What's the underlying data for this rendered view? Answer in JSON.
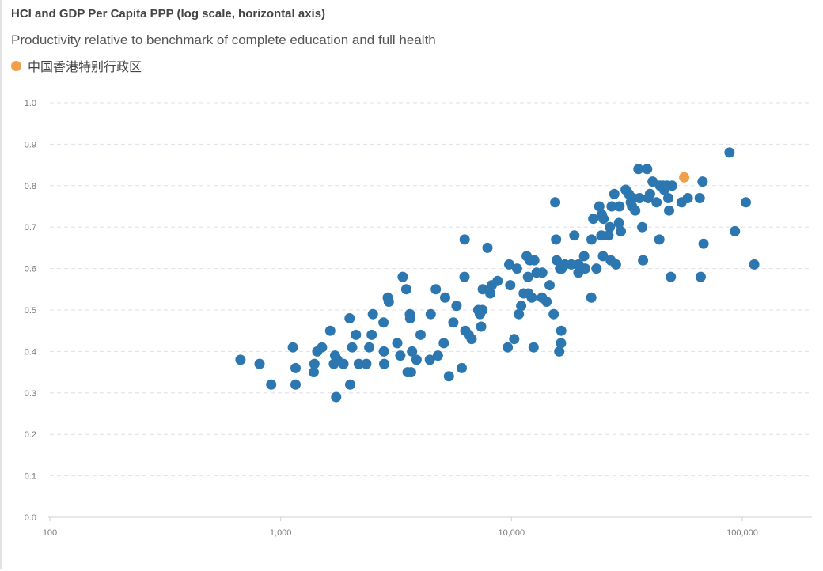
{
  "chart_data": {
    "type": "scatter",
    "title": "HCI and GDP Per Capita PPP (log scale, horizontal axis)",
    "subtitle": "Productivity relative to benchmark of complete education and full health",
    "xlabel": "",
    "ylabel": "",
    "x_scale": "log",
    "xlim": [
      100,
      200000
    ],
    "ylim": [
      0,
      1.0
    ],
    "grid": true,
    "legend_position": "top-left",
    "colors": {
      "series": "#2c77b0",
      "highlight": "#f0a04b",
      "grid": "#e4deea",
      "axis": "#d0d0d0"
    },
    "xticks": [
      {
        "value": 100,
        "label": "100"
      },
      {
        "value": 1000,
        "label": "1,000"
      },
      {
        "value": 10000,
        "label": "10,000"
      },
      {
        "value": 100000,
        "label": "100,000"
      }
    ],
    "yticks": [
      {
        "value": 0.0,
        "label": "0.0"
      },
      {
        "value": 0.1,
        "label": "0.1"
      },
      {
        "value": 0.2,
        "label": "0.2"
      },
      {
        "value": 0.3,
        "label": "0.3"
      },
      {
        "value": 0.4,
        "label": "0.4"
      },
      {
        "value": 0.5,
        "label": "0.5"
      },
      {
        "value": 0.6,
        "label": "0.6"
      },
      {
        "value": 0.7,
        "label": "0.7"
      },
      {
        "value": 0.8,
        "label": "0.8"
      },
      {
        "value": 0.9,
        "label": "0.9"
      },
      {
        "value": 1.0,
        "label": "1.0"
      }
    ],
    "highlight": {
      "name": "中国香港特别行政区",
      "x": 56000,
      "y": 0.82
    },
    "series": [
      {
        "points": [
          [
            670,
            0.38
          ],
          [
            810,
            0.37
          ],
          [
            910,
            0.32
          ],
          [
            1130,
            0.41
          ],
          [
            1160,
            0.36
          ],
          [
            1160,
            0.32
          ],
          [
            1390,
            0.35
          ],
          [
            1400,
            0.37
          ],
          [
            1440,
            0.4
          ],
          [
            1510,
            0.41
          ],
          [
            1640,
            0.45
          ],
          [
            1700,
            0.37
          ],
          [
            1720,
            0.39
          ],
          [
            1740,
            0.29
          ],
          [
            1760,
            0.38
          ],
          [
            1870,
            0.37
          ],
          [
            1990,
            0.48
          ],
          [
            2000,
            0.32
          ],
          [
            2040,
            0.41
          ],
          [
            2120,
            0.44
          ],
          [
            2180,
            0.37
          ],
          [
            2350,
            0.37
          ],
          [
            2420,
            0.41
          ],
          [
            2480,
            0.44
          ],
          [
            2510,
            0.49
          ],
          [
            2790,
            0.47
          ],
          [
            2810,
            0.37
          ],
          [
            2800,
            0.4
          ],
          [
            2910,
            0.53
          ],
          [
            2940,
            0.52
          ],
          [
            3200,
            0.42
          ],
          [
            3300,
            0.39
          ],
          [
            3380,
            0.58
          ],
          [
            3500,
            0.55
          ],
          [
            3550,
            0.35
          ],
          [
            3630,
            0.49
          ],
          [
            3640,
            0.48
          ],
          [
            3670,
            0.35
          ],
          [
            3710,
            0.4
          ],
          [
            3880,
            0.38
          ],
          [
            4040,
            0.44
          ],
          [
            4430,
            0.38
          ],
          [
            4470,
            0.49
          ],
          [
            4700,
            0.55
          ],
          [
            4800,
            0.39
          ],
          [
            5090,
            0.42
          ],
          [
            5160,
            0.53
          ],
          [
            5360,
            0.34
          ],
          [
            5600,
            0.47
          ],
          [
            5780,
            0.51
          ],
          [
            6090,
            0.36
          ],
          [
            6260,
            0.58
          ],
          [
            6270,
            0.67
          ],
          [
            6310,
            0.45
          ],
          [
            6530,
            0.44
          ],
          [
            6720,
            0.43
          ],
          [
            7180,
            0.5
          ],
          [
            7300,
            0.49
          ],
          [
            7390,
            0.46
          ],
          [
            7480,
            0.5
          ],
          [
            7510,
            0.55
          ],
          [
            7870,
            0.65
          ],
          [
            8100,
            0.54
          ],
          [
            8220,
            0.56
          ],
          [
            8710,
            0.57
          ],
          [
            9630,
            0.41
          ],
          [
            9780,
            0.61
          ],
          [
            9880,
            0.56
          ],
          [
            10280,
            0.43
          ],
          [
            10570,
            0.6
          ],
          [
            10770,
            0.49
          ],
          [
            11020,
            0.51
          ],
          [
            11300,
            0.54
          ],
          [
            11640,
            0.63
          ],
          [
            11790,
            0.58
          ],
          [
            11830,
            0.54
          ],
          [
            12000,
            0.62
          ],
          [
            12240,
            0.53
          ],
          [
            12470,
            0.41
          ],
          [
            12560,
            0.62
          ],
          [
            12850,
            0.59
          ],
          [
            13560,
            0.53
          ],
          [
            13600,
            0.59
          ],
          [
            14190,
            0.52
          ],
          [
            14630,
            0.56
          ],
          [
            15240,
            0.49
          ],
          [
            15470,
            0.76
          ],
          [
            15600,
            0.67
          ],
          [
            15700,
            0.62
          ],
          [
            16110,
            0.4
          ],
          [
            16230,
            0.6
          ],
          [
            16390,
            0.42
          ],
          [
            16420,
            0.45
          ],
          [
            16510,
            0.6
          ],
          [
            17050,
            0.61
          ],
          [
            18180,
            0.61
          ],
          [
            18730,
            0.68
          ],
          [
            19490,
            0.59
          ],
          [
            19530,
            0.61
          ],
          [
            20640,
            0.63
          ],
          [
            20860,
            0.6
          ],
          [
            22170,
            0.53
          ],
          [
            22220,
            0.67
          ],
          [
            22620,
            0.72
          ],
          [
            23340,
            0.6
          ],
          [
            24020,
            0.75
          ],
          [
            24520,
            0.68
          ],
          [
            24630,
            0.73
          ],
          [
            24920,
            0.63
          ],
          [
            25030,
            0.72
          ],
          [
            26320,
            0.68
          ],
          [
            26680,
            0.7
          ],
          [
            26910,
            0.62
          ],
          [
            27160,
            0.75
          ],
          [
            27910,
            0.78
          ],
          [
            28370,
            0.61
          ],
          [
            29210,
            0.71
          ],
          [
            29380,
            0.75
          ],
          [
            29770,
            0.69
          ],
          [
            31230,
            0.79
          ],
          [
            32240,
            0.78
          ],
          [
            32890,
            0.76
          ],
          [
            33300,
            0.75
          ],
          [
            33610,
            0.77
          ],
          [
            34370,
            0.74
          ],
          [
            35500,
            0.84
          ],
          [
            35870,
            0.77
          ],
          [
            36870,
            0.7
          ],
          [
            37160,
            0.62
          ],
          [
            38730,
            0.84
          ],
          [
            39120,
            0.77
          ],
          [
            39820,
            0.78
          ],
          [
            40870,
            0.81
          ],
          [
            42530,
            0.76
          ],
          [
            43730,
            0.67
          ],
          [
            44010,
            0.8
          ],
          [
            45300,
            0.8
          ],
          [
            45870,
            0.79
          ],
          [
            47170,
            0.8
          ],
          [
            47800,
            0.77
          ],
          [
            48160,
            0.74
          ],
          [
            49020,
            0.58
          ],
          [
            49690,
            0.8
          ],
          [
            54600,
            0.76
          ],
          [
            58060,
            0.77
          ],
          [
            65370,
            0.77
          ],
          [
            66030,
            0.58
          ],
          [
            67300,
            0.81
          ],
          [
            67970,
            0.66
          ],
          [
            88060,
            0.88
          ],
          [
            92950,
            0.69
          ],
          [
            103610,
            0.76
          ],
          [
            112700,
            0.61
          ]
        ]
      }
    ]
  }
}
